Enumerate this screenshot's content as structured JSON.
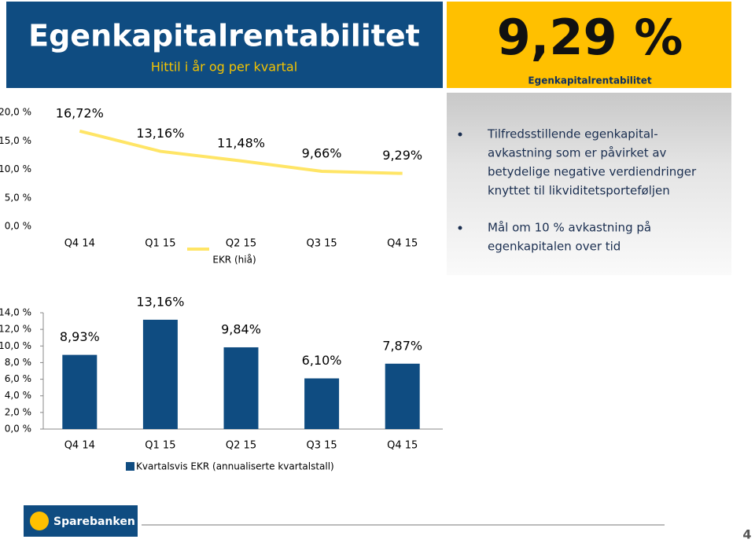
{
  "header": {
    "title": "Egenkapitalrentabilitet",
    "subtitle": "Hittil i år og per kvartal"
  },
  "highlight": {
    "value": "9,29 %",
    "label": "Egenkapitalrentabilitet"
  },
  "notes": [
    [
      "Tilfredsstillende egenkapital-",
      "avkastning som er påvirket av",
      "betydelige negative verdiendringer",
      "knyttet til likviditetsporteføljen"
    ],
    [
      "Mål om 10 % avkastning på",
      "egenkapitalen over tid"
    ]
  ],
  "chart_data": [
    {
      "type": "line",
      "categories": [
        "Q4 14",
        "Q1 15",
        "Q2 15",
        "Q3 15",
        "Q4 15"
      ],
      "series": [
        {
          "name": "EKR (hiå)",
          "color": "#ffe566",
          "values": [
            16.72,
            13.16,
            11.48,
            9.66,
            9.29
          ],
          "value_labels": [
            "16,72%",
            "13,16%",
            "11,48%",
            "9,66%",
            "9,29%"
          ]
        }
      ],
      "ylim": [
        0,
        20
      ],
      "yticks": [
        {
          "value": 0,
          "label": "0,0 %"
        },
        {
          "value": 5,
          "label": "5,0 %"
        },
        {
          "value": 10,
          "label": "10,0 %"
        },
        {
          "value": 15,
          "label": "15,0 %"
        },
        {
          "value": 20,
          "label": "20,0 %"
        }
      ]
    },
    {
      "type": "bar",
      "categories": [
        "Q4 14",
        "Q1 15",
        "Q2 15",
        "Q3 15",
        "Q4 15"
      ],
      "series": [
        {
          "name": "Kvartalsvis EKR (annualiserte kvartalstall)",
          "color": "#0f4c81",
          "values": [
            8.93,
            13.16,
            9.84,
            6.1,
            7.87
          ],
          "value_labels": [
            "8,93%",
            "13,16%",
            "9,84%",
            "6,10%",
            "7,87%"
          ]
        }
      ],
      "ylim": [
        0,
        14
      ],
      "yticks": [
        {
          "value": 0,
          "label": "0,0 %"
        },
        {
          "value": 2,
          "label": "2,0 %"
        },
        {
          "value": 4,
          "label": "4,0 %"
        },
        {
          "value": 6,
          "label": "6,0 %"
        },
        {
          "value": 8,
          "label": "8,0 %"
        },
        {
          "value": 10,
          "label": "10,0 %"
        },
        {
          "value": 12,
          "label": "12,0 %"
        },
        {
          "value": 14,
          "label": "14,0 %"
        }
      ]
    }
  ],
  "footer": {
    "logo": "Sparebanken Øst",
    "page": "4"
  }
}
